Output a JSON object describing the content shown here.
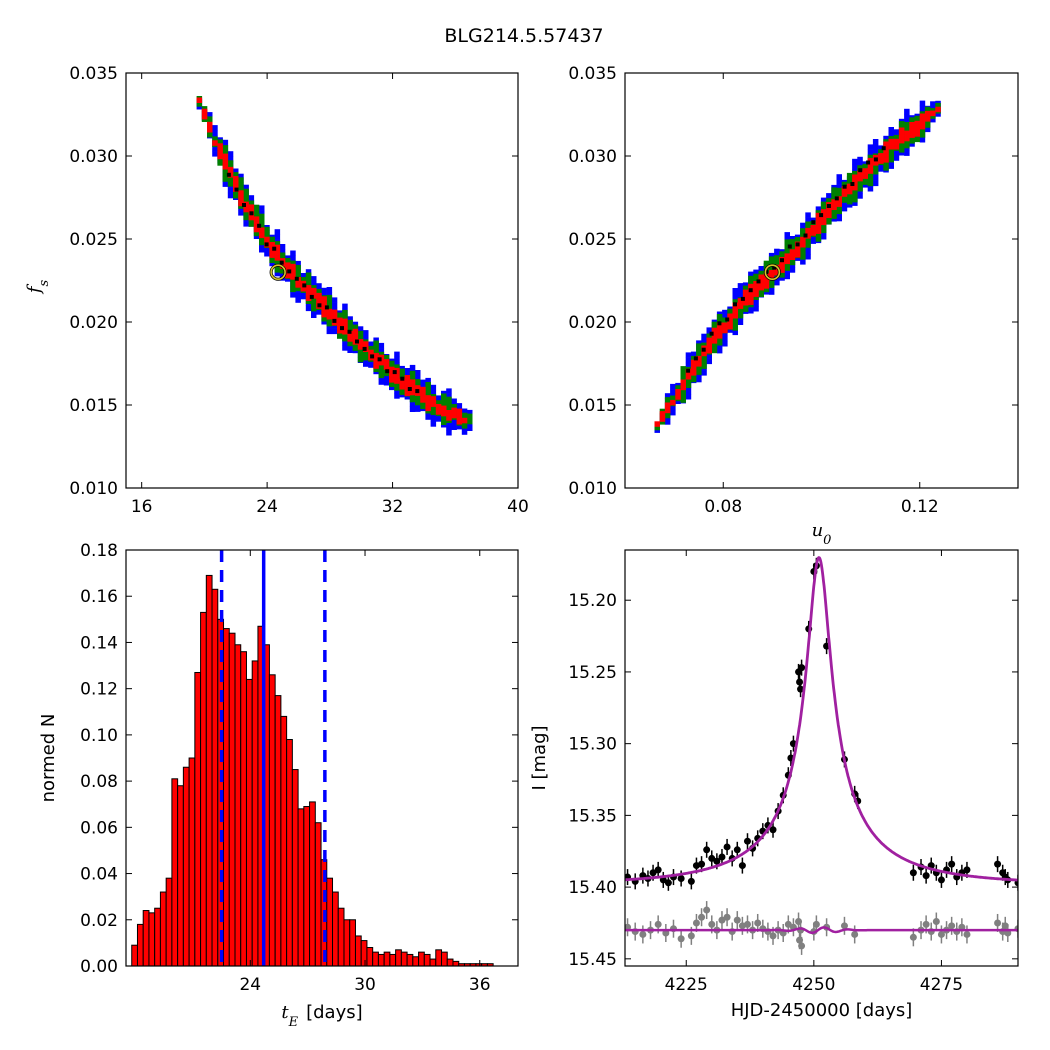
{
  "figure_title": "BLG214.5.57437",
  "chart_data": [
    {
      "type": "heatmap",
      "panel": "top-left",
      "xlabel": "",
      "ylabel": "f",
      "ylabel_sub": "s",
      "xlim": [
        15,
        40
      ],
      "ylim": [
        0.01,
        0.035
      ],
      "xticks": [
        16,
        24,
        32,
        40
      ],
      "xtick_labels": [
        "16",
        "24",
        "32",
        "40"
      ],
      "yticks": [
        0.01,
        0.015,
        0.02,
        0.025,
        0.03,
        0.035
      ],
      "ytick_labels": [
        "0.010",
        "0.015",
        "0.020",
        "0.025",
        "0.030",
        "0.035"
      ],
      "ridge": [
        [
          19.5,
          0.0334
        ],
        [
          20.5,
          0.031
        ],
        [
          22,
          0.028
        ],
        [
          24,
          0.0248
        ],
        [
          25.5,
          0.023
        ],
        [
          27.5,
          0.021
        ],
        [
          30,
          0.0186
        ],
        [
          32.5,
          0.0165
        ],
        [
          35,
          0.0148
        ],
        [
          37,
          0.0141
        ]
      ],
      "contour_colors": {
        "outer": "#0000ff",
        "middle": "#008000",
        "inner": "#ff0000",
        "samples": "#000000"
      },
      "best_fit": [
        24.7,
        0.023
      ]
    },
    {
      "type": "heatmap",
      "panel": "top-right",
      "xlabel": "u",
      "xlabel_sub": "0",
      "ylabel": "",
      "xlim": [
        0.06,
        0.14
      ],
      "ylim": [
        0.01,
        0.035
      ],
      "xticks": [
        0.08,
        0.12
      ],
      "xtick_labels": [
        "0.08",
        "0.12"
      ],
      "yticks": [
        0.01,
        0.015,
        0.02,
        0.025,
        0.03,
        0.035
      ],
      "ytick_labels": [
        "0.010",
        "0.015",
        "0.020",
        "0.025",
        "0.030",
        "0.035"
      ],
      "ridge": [
        [
          0.066,
          0.0139
        ],
        [
          0.072,
          0.0167
        ],
        [
          0.078,
          0.0193
        ],
        [
          0.084,
          0.0215
        ],
        [
          0.09,
          0.0233
        ],
        [
          0.096,
          0.0251
        ],
        [
          0.102,
          0.0272
        ],
        [
          0.108,
          0.029
        ],
        [
          0.114,
          0.0308
        ],
        [
          0.12,
          0.0322
        ],
        [
          0.124,
          0.0333
        ]
      ],
      "contour_colors": {
        "outer": "#0000ff",
        "middle": "#008000",
        "inner": "#ff0000",
        "samples": "#000000"
      },
      "best_fit": [
        0.09,
        0.023
      ]
    },
    {
      "type": "bar",
      "panel": "bottom-left",
      "xlabel": "t",
      "xlabel_sub": "E",
      "xlabel_unit": "[days]",
      "ylabel": "normed N",
      "xlim": [
        17.5,
        38
      ],
      "ylim": [
        0,
        0.18
      ],
      "xticks": [
        24,
        30,
        36
      ],
      "xtick_labels": [
        "24",
        "30",
        "36"
      ],
      "yticks": [
        0,
        0.02,
        0.04,
        0.06,
        0.08,
        0.1,
        0.12,
        0.14,
        0.16,
        0.18
      ],
      "ytick_labels": [
        "0.00",
        "0.02",
        "0.04",
        "0.06",
        "0.08",
        "0.10",
        "0.12",
        "0.14",
        "0.16",
        "0.18"
      ],
      "bin_start": 17.8,
      "bin_width": 0.3,
      "values": [
        0.009,
        0.018,
        0.024,
        0.023,
        0.025,
        0.032,
        0.038,
        0.081,
        0.078,
        0.086,
        0.09,
        0.127,
        0.153,
        0.169,
        0.163,
        0.15,
        0.146,
        0.144,
        0.139,
        0.136,
        0.124,
        0.132,
        0.147,
        0.139,
        0.126,
        0.117,
        0.108,
        0.098,
        0.085,
        0.068,
        0.069,
        0.071,
        0.062,
        0.046,
        0.038,
        0.032,
        0.025,
        0.02,
        0.02,
        0.013,
        0.011,
        0.008,
        0.006,
        0.005,
        0.006,
        0.005,
        0.007,
        0.006,
        0.005,
        0.004,
        0.006,
        0.005,
        0.003,
        0.007,
        0.006,
        0.003,
        0.002,
        0.001,
        0.001,
        0.001,
        0.001,
        0.001,
        0.001
      ],
      "bar_color": "#ff0000",
      "median_line": 24.7,
      "interval_lines": [
        22.5,
        27.9
      ],
      "line_color": "#0000ff"
    },
    {
      "type": "scatter",
      "panel": "bottom-right",
      "xlabel": "HJD-2450000 [days]",
      "ylabel": "I [mag]",
      "xlim": [
        4213,
        4290
      ],
      "ylim": [
        15.455,
        15.165
      ],
      "xticks": [
        4225,
        4250,
        4275
      ],
      "xtick_labels": [
        "4225",
        "4250",
        "4275"
      ],
      "yticks": [
        15.2,
        15.25,
        15.3,
        15.35,
        15.4,
        15.45
      ],
      "ytick_labels": [
        "15.20",
        "15.25",
        "15.30",
        "15.35",
        "15.40",
        "15.45"
      ],
      "model": {
        "t0": 4251.0,
        "u0": 0.09,
        "tE": 24.7,
        "fs": 0.023,
        "baseline": 15.398,
        "color": "#a020a0"
      },
      "residual_offset": 15.43,
      "series": [
        {
          "name": "",
          "color": "#000000",
          "points": [
            [
              4213.5,
              15.393
            ],
            [
              4215,
              15.396
            ],
            [
              4216.5,
              15.392
            ],
            [
              4217.5,
              15.394
            ],
            [
              4218.5,
              15.39
            ],
            [
              4219.5,
              15.388
            ],
            [
              4220.5,
              15.395
            ],
            [
              4221.5,
              15.397
            ],
            [
              4222.5,
              15.393
            ],
            [
              4224,
              15.394
            ],
            [
              4226,
              15.396
            ],
            [
              4227,
              15.385
            ],
            [
              4228,
              15.384
            ],
            [
              4229,
              15.374
            ],
            [
              4230,
              15.38
            ],
            [
              4231,
              15.382
            ],
            [
              4232,
              15.379
            ],
            [
              4233,
              15.372
            ],
            [
              4234,
              15.38
            ],
            [
              4235,
              15.374
            ],
            [
              4236,
              15.385
            ],
            [
              4237,
              15.368
            ],
            [
              4238,
              15.373
            ],
            [
              4239,
              15.366
            ],
            [
              4240,
              15.361
            ],
            [
              4241,
              15.357
            ],
            [
              4242,
              15.36
            ],
            [
              4243,
              15.347
            ],
            [
              4244,
              15.336
            ],
            [
              4245,
              15.322
            ],
            [
              4245.5,
              15.31
            ],
            [
              4246,
              15.3
            ],
            [
              4247,
              15.25
            ],
            [
              4247.2,
              15.257
            ],
            [
              4247.4,
              15.262
            ],
            [
              4247.6,
              15.247
            ],
            [
              4250,
              15.18
            ],
            [
              4250.5,
              15.176
            ],
            [
              4249,
              15.22
            ],
            [
              4252.5,
              15.232
            ],
            [
              4256,
              15.311
            ],
            [
              4258,
              15.335
            ],
            [
              4258.6,
              15.34
            ],
            [
              4269.5,
              15.39
            ],
            [
              4271,
              15.386
            ],
            [
              4272,
              15.392
            ],
            [
              4273,
              15.385
            ],
            [
              4274,
              15.39
            ],
            [
              4275,
              15.395
            ],
            [
              4276,
              15.388
            ],
            [
              4277,
              15.384
            ],
            [
              4278,
              15.393
            ],
            [
              4279,
              15.39
            ],
            [
              4280,
              15.388
            ],
            [
              4286,
              15.384
            ],
            [
              4287,
              15.39
            ],
            [
              4287.5,
              15.393
            ],
            [
              4288,
              15.395
            ],
            [
              4290,
              15.397
            ]
          ]
        },
        {
          "name": "",
          "color": "#808080",
          "points": [
            [
              4213.5,
              15.428
            ],
            [
              4215,
              15.431
            ],
            [
              4216.5,
              15.433
            ],
            [
              4218,
              15.43
            ],
            [
              4219.5,
              15.426
            ],
            [
              4221,
              15.432
            ],
            [
              4222.5,
              15.429
            ],
            [
              4224,
              15.436
            ],
            [
              4226,
              15.434
            ],
            [
              4227,
              15.425
            ],
            [
              4228,
              15.421
            ],
            [
              4229,
              15.416
            ],
            [
              4230,
              15.426
            ],
            [
              4231,
              15.43
            ],
            [
              4232,
              15.423
            ],
            [
              4233,
              15.421
            ],
            [
              4234,
              15.431
            ],
            [
              4235,
              15.423
            ],
            [
              4236,
              15.427
            ],
            [
              4237,
              15.426
            ],
            [
              4238,
              15.43
            ],
            [
              4239,
              15.425
            ],
            [
              4240,
              15.429
            ],
            [
              4241,
              15.431
            ],
            [
              4242,
              15.434
            ],
            [
              4243,
              15.43
            ],
            [
              4244,
              15.432
            ],
            [
              4245,
              15.426
            ],
            [
              4246,
              15.428
            ],
            [
              4247,
              15.424
            ],
            [
              4247.2,
              15.437
            ],
            [
              4247.4,
              15.43
            ],
            [
              4247.6,
              15.441
            ],
            [
              4250,
              15.431
            ],
            [
              4250.5,
              15.426
            ],
            [
              4252.5,
              15.428
            ],
            [
              4256,
              15.427
            ],
            [
              4258,
              15.433
            ],
            [
              4269.5,
              15.435
            ],
            [
              4271,
              15.43
            ],
            [
              4272,
              15.426
            ],
            [
              4273,
              15.431
            ],
            [
              4274,
              15.424
            ],
            [
              4275,
              15.433
            ],
            [
              4276,
              15.43
            ],
            [
              4277,
              15.427
            ],
            [
              4278,
              15.431
            ],
            [
              4279,
              15.428
            ],
            [
              4280,
              15.433
            ],
            [
              4286,
              15.425
            ],
            [
              4287,
              15.431
            ],
            [
              4287.5,
              15.427
            ],
            [
              4288,
              15.432
            ],
            [
              4290,
              15.429
            ]
          ]
        }
      ]
    }
  ]
}
